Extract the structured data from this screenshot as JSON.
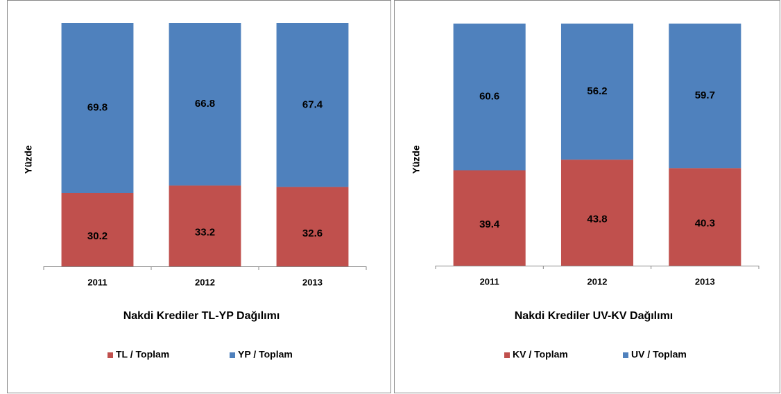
{
  "chart_data": [
    {
      "type": "bar",
      "stacked": true,
      "title": "Nakdi Krediler  TL-YP Dağılımı",
      "ylabel": "Yüzde",
      "categories": [
        "2011",
        "2012",
        "2013"
      ],
      "series": [
        {
          "name": "TL / Toplam",
          "color": "#c0504d",
          "values": [
            30.2,
            33.2,
            32.6
          ]
        },
        {
          "name": "YP / Toplam",
          "color": "#4f81bd",
          "values": [
            69.8,
            66.8,
            67.4
          ]
        }
      ],
      "ylim": [
        0,
        100
      ],
      "legend": "bottom"
    },
    {
      "type": "bar",
      "stacked": true,
      "title": "Nakdi Krediler UV-KV Dağılımı",
      "ylabel": "Yüzde",
      "categories": [
        "2011",
        "2012",
        "2013"
      ],
      "series": [
        {
          "name": "KV / Toplam",
          "color": "#c0504d",
          "values": [
            39.4,
            43.8,
            40.3
          ]
        },
        {
          "name": "UV / Toplam",
          "color": "#4f81bd",
          "values": [
            60.6,
            56.2,
            59.7
          ]
        }
      ],
      "ylim": [
        0,
        100
      ],
      "legend": "bottom"
    }
  ]
}
